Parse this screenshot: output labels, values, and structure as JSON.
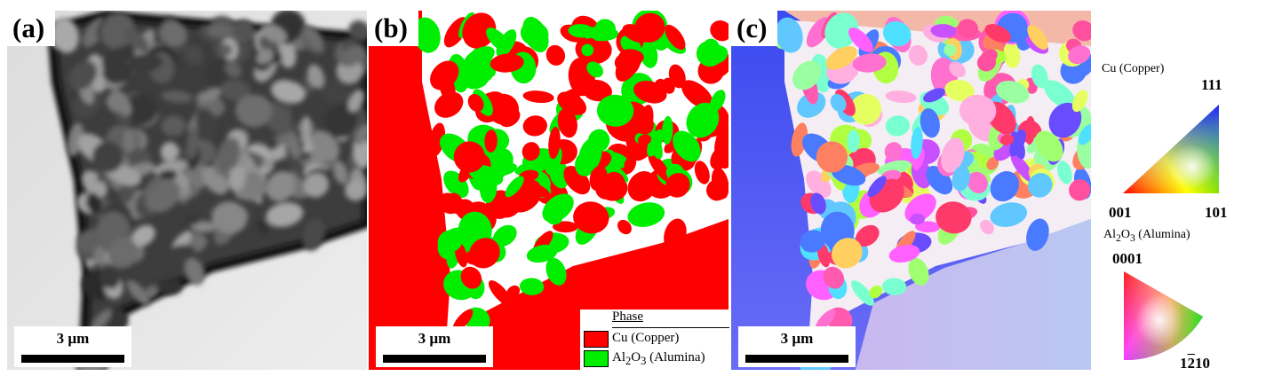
{
  "panels": {
    "a": {
      "label": "(a)",
      "scale": "3 µm"
    },
    "b": {
      "label": "(b)",
      "scale": "3 µm"
    },
    "c": {
      "label": "(c)",
      "scale": "3 µm"
    }
  },
  "phase_legend": {
    "title": "Phase",
    "items": [
      {
        "name": "Cu (Copper)",
        "color": "#ff0000"
      },
      {
        "name_prefix": "Al",
        "sub1": "2",
        "mid": "O",
        "sub2": "3",
        "suffix": " (Alumina)",
        "color": "#00ee00"
      }
    ]
  },
  "ipf_legend": {
    "copper": {
      "title": "Cu (Copper)",
      "top": "111",
      "left": "001",
      "right": "101"
    },
    "alumina": {
      "title_prefix": "Al",
      "sub1": "2",
      "mid": "O",
      "sub2": "3",
      "suffix": " (Alumina)",
      "top": "0001",
      "bottom_pre": "1",
      "bottom_bar": "2",
      "bottom_post": "10"
    }
  },
  "colors": {
    "copper": "#ff0000",
    "alumina": "#00ee00",
    "boundary": "#ffffff"
  }
}
